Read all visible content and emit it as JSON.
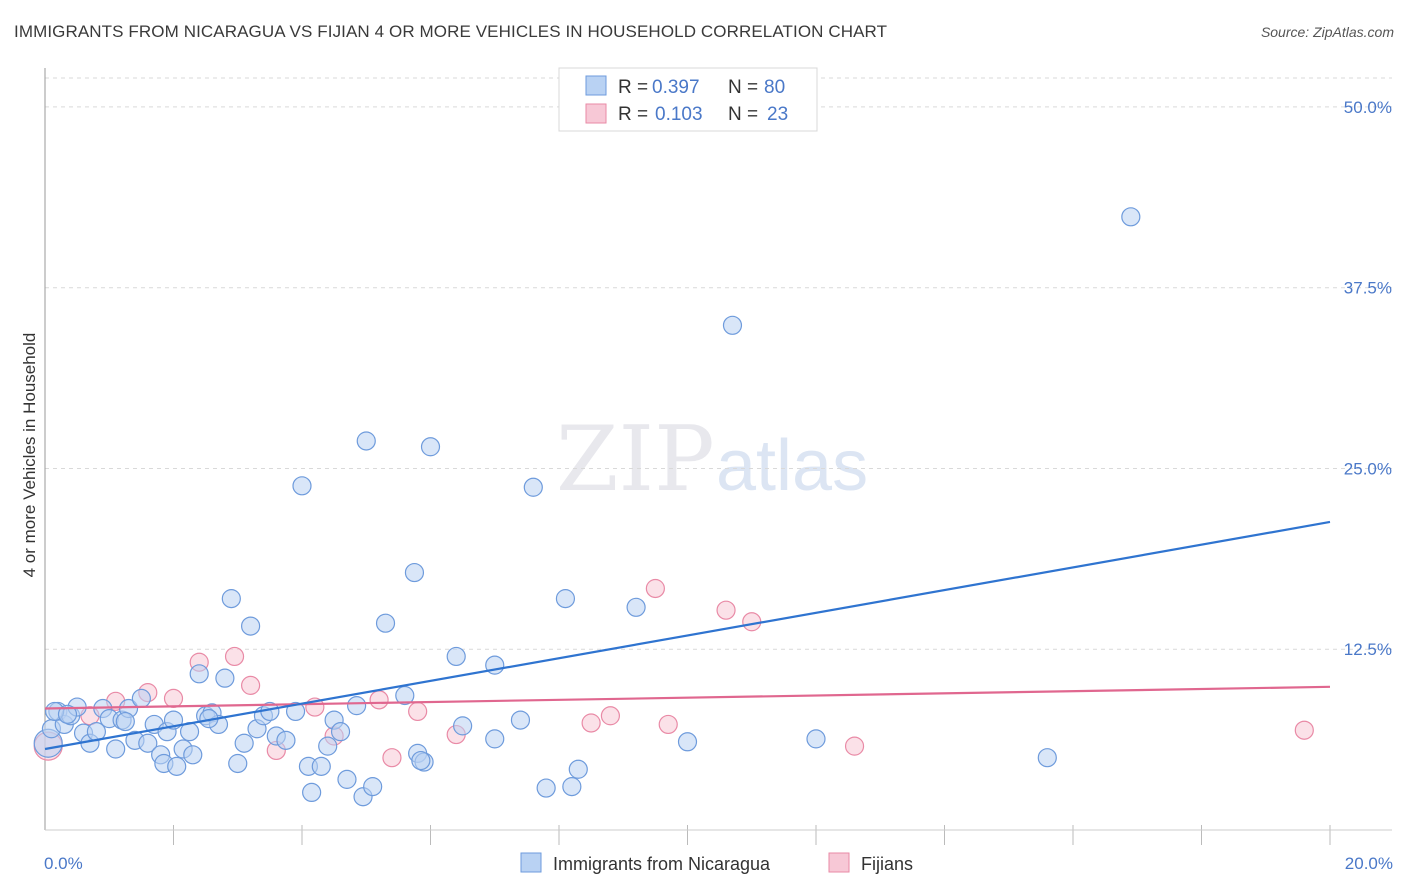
{
  "header": {
    "title": "IMMIGRANTS FROM NICARAGUA VS FIJIAN 4 OR MORE VEHICLES IN HOUSEHOLD CORRELATION CHART",
    "source": "Source: ZipAtlas.com"
  },
  "watermark": {
    "part1": "ZIP",
    "part2": "atlas"
  },
  "colors": {
    "blue_fill": "#b9d2f3",
    "blue_stroke": "#6e9bdc",
    "blue_line": "#2f74d0",
    "pink_fill": "#f7c8d6",
    "pink_stroke": "#e98aa6",
    "pink_line": "#e0678f",
    "grid": "#d9d9d9",
    "tick_text": "#4a78c8"
  },
  "legend": {
    "series": [
      {
        "r_label": "R =",
        "r_value": "0.397",
        "n_label": "N =",
        "n_value": "80"
      },
      {
        "r_label": "R =",
        "r_value": "0.103",
        "n_label": "N =",
        "n_value": "23"
      }
    ]
  },
  "bottom_legend": [
    "Immigrants from Nicaragua",
    "Fijians"
  ],
  "chart_data": {
    "type": "scatter",
    "title": "IMMIGRANTS FROM NICARAGUA VS FIJIAN 4 OR MORE VEHICLES IN HOUSEHOLD CORRELATION CHART",
    "xlabel": "",
    "ylabel": "4 or more Vehicles in Household",
    "xlim": [
      0,
      20
    ],
    "ylim": [
      0,
      52
    ],
    "x_tick_labels": [
      {
        "value": 0,
        "label": "0.0%"
      },
      {
        "value": 20,
        "label": "20.0%"
      }
    ],
    "y_ticks": [
      {
        "value": 12.5,
        "label": "12.5%"
      },
      {
        "value": 25.0,
        "label": "25.0%"
      },
      {
        "value": 37.5,
        "label": "37.5%"
      },
      {
        "value": 50.0,
        "label": "50.0%"
      }
    ],
    "x_minor_ticks": [
      2,
      4,
      6,
      8,
      10,
      12,
      14,
      16,
      18,
      20
    ],
    "series": [
      {
        "name": "Immigrants from Nicaragua",
        "color": "blue",
        "R": 0.397,
        "N": 80,
        "trend": {
          "x": [
            0,
            20
          ],
          "y": [
            5.6,
            21.3
          ]
        },
        "points": [
          [
            0.05,
            6.0
          ],
          [
            0.1,
            7.0
          ],
          [
            0.2,
            8.2
          ],
          [
            0.3,
            7.3
          ],
          [
            0.4,
            7.9
          ],
          [
            0.5,
            8.5
          ],
          [
            0.6,
            6.7
          ],
          [
            0.7,
            6.0
          ],
          [
            0.8,
            6.8
          ],
          [
            0.9,
            8.4
          ],
          [
            1.0,
            7.7
          ],
          [
            1.1,
            5.6
          ],
          [
            1.2,
            7.6
          ],
          [
            1.3,
            8.4
          ],
          [
            1.4,
            6.2
          ],
          [
            1.5,
            9.1
          ],
          [
            1.6,
            6.0
          ],
          [
            1.7,
            7.3
          ],
          [
            1.8,
            5.2
          ],
          [
            1.85,
            4.6
          ],
          [
            1.9,
            6.8
          ],
          [
            2.0,
            7.6
          ],
          [
            2.05,
            4.4
          ],
          [
            2.15,
            5.6
          ],
          [
            2.25,
            6.8
          ],
          [
            2.3,
            5.2
          ],
          [
            2.4,
            10.8
          ],
          [
            2.5,
            7.9
          ],
          [
            2.6,
            8.1
          ],
          [
            2.7,
            7.3
          ],
          [
            2.8,
            10.5
          ],
          [
            2.9,
            16.0
          ],
          [
            3.0,
            4.6
          ],
          [
            3.1,
            6.0
          ],
          [
            3.2,
            14.1
          ],
          [
            3.3,
            7.0
          ],
          [
            3.4,
            7.9
          ],
          [
            3.5,
            8.2
          ],
          [
            3.6,
            6.5
          ],
          [
            3.75,
            6.2
          ],
          [
            3.9,
            8.2
          ],
          [
            4.0,
            23.8
          ],
          [
            4.1,
            4.4
          ],
          [
            4.15,
            2.6
          ],
          [
            4.3,
            4.4
          ],
          [
            4.4,
            5.8
          ],
          [
            4.5,
            7.6
          ],
          [
            4.6,
            6.8
          ],
          [
            4.7,
            3.5
          ],
          [
            4.85,
            8.6
          ],
          [
            4.95,
            2.3
          ],
          [
            5.0,
            26.9
          ],
          [
            5.1,
            3.0
          ],
          [
            5.3,
            14.3
          ],
          [
            5.6,
            9.3
          ],
          [
            5.75,
            17.8
          ],
          [
            5.8,
            5.3
          ],
          [
            5.9,
            4.7
          ],
          [
            6.0,
            26.5
          ],
          [
            6.4,
            12.0
          ],
          [
            6.5,
            7.2
          ],
          [
            7.0,
            6.3
          ],
          [
            7.0,
            11.4
          ],
          [
            7.4,
            7.6
          ],
          [
            7.6,
            23.7
          ],
          [
            7.8,
            2.9
          ],
          [
            8.1,
            16.0
          ],
          [
            8.2,
            3.0
          ],
          [
            8.3,
            4.2
          ],
          [
            9.2,
            15.4
          ],
          [
            10.0,
            6.1
          ],
          [
            10.7,
            34.9
          ],
          [
            12.0,
            6.3
          ],
          [
            15.6,
            5.0
          ],
          [
            16.9,
            42.4
          ],
          [
            0.15,
            8.2
          ],
          [
            0.35,
            8.0
          ],
          [
            1.25,
            7.5
          ],
          [
            2.55,
            7.7
          ],
          [
            5.85,
            4.8
          ]
        ]
      },
      {
        "name": "Fijians",
        "color": "pink",
        "R": 0.103,
        "N": 23,
        "trend": {
          "x": [
            0,
            20
          ],
          "y": [
            8.4,
            9.9
          ]
        },
        "points": [
          [
            0.05,
            5.8
          ],
          [
            0.7,
            7.9
          ],
          [
            1.1,
            8.9
          ],
          [
            1.6,
            9.5
          ],
          [
            2.0,
            9.1
          ],
          [
            2.4,
            11.6
          ],
          [
            2.95,
            12.0
          ],
          [
            3.2,
            10.0
          ],
          [
            3.6,
            5.5
          ],
          [
            4.2,
            8.5
          ],
          [
            4.5,
            6.5
          ],
          [
            5.2,
            9.0
          ],
          [
            5.4,
            5.0
          ],
          [
            5.8,
            8.2
          ],
          [
            6.4,
            6.6
          ],
          [
            8.5,
            7.4
          ],
          [
            8.8,
            7.9
          ],
          [
            9.7,
            7.3
          ],
          [
            9.5,
            16.7
          ],
          [
            10.6,
            15.2
          ],
          [
            11.0,
            14.4
          ],
          [
            12.6,
            5.8
          ],
          [
            19.6,
            6.9
          ]
        ]
      }
    ],
    "legend": [
      "Immigrants from Nicaragua",
      "Fijians"
    ],
    "grid": true
  }
}
